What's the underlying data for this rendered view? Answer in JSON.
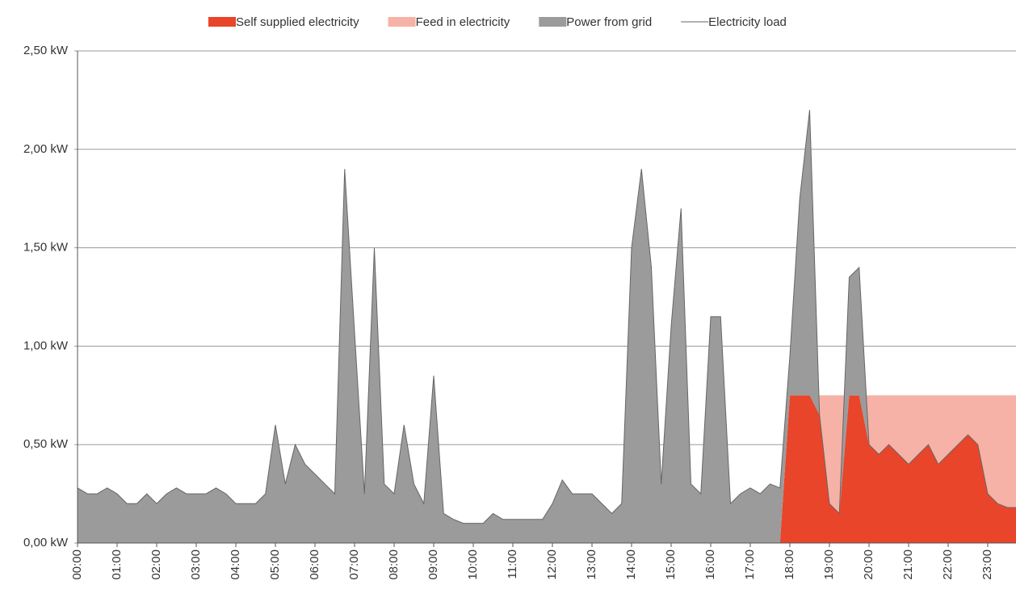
{
  "chart_data": {
    "type": "area",
    "categories": [
      "00:00",
      null,
      null,
      null,
      "01:00",
      null,
      null,
      null,
      "02:00",
      null,
      null,
      null,
      "03:00",
      null,
      null,
      null,
      "04:00",
      null,
      null,
      null,
      "05:00",
      null,
      null,
      null,
      "06:00",
      null,
      null,
      null,
      "07:00",
      null,
      null,
      null,
      "08:00",
      null,
      null,
      null,
      "09:00",
      null,
      null,
      null,
      "10:00",
      null,
      null,
      null,
      "11:00",
      null,
      null,
      null,
      "12:00",
      null,
      null,
      null,
      "13:00",
      null,
      null,
      null,
      "14:00",
      null,
      null,
      null,
      "15:00",
      null,
      null,
      null,
      "16:00",
      null,
      null,
      null,
      "17:00",
      null,
      null,
      null,
      "18:00",
      null,
      null,
      null,
      "19:00",
      null,
      null,
      null,
      "20:00",
      null,
      null,
      null,
      "21:00",
      null,
      null,
      null,
      "22:00",
      null,
      null,
      null,
      "23:00",
      null,
      null,
      null
    ],
    "series": [
      {
        "name": "Self supplied electricity",
        "type": "area",
        "color": "#e8452a",
        "values": [
          0,
          0,
          0,
          0,
          0,
          0,
          0,
          0,
          0,
          0,
          0,
          0,
          0,
          0,
          0,
          0,
          0,
          0,
          0,
          0,
          0,
          0,
          0,
          0,
          0,
          0,
          0,
          0,
          0,
          0,
          0,
          0,
          0,
          0,
          0,
          0,
          0,
          0,
          0,
          0,
          0,
          0,
          0,
          0,
          0,
          0,
          0,
          0,
          0,
          0,
          0,
          0,
          0,
          0,
          0,
          0,
          0,
          0,
          0,
          0,
          0,
          0,
          0,
          0,
          0,
          0,
          0,
          0,
          0,
          0,
          0,
          0,
          0.75,
          0.75,
          0.75,
          0.65,
          0.2,
          0.15,
          0.75,
          0.75,
          0.5,
          0.45,
          0.5,
          0.45,
          0.4,
          0.45,
          0.5,
          0.4,
          0.45,
          0.5,
          0.55,
          0.5,
          0.25,
          0.2,
          0.18,
          0.18
        ]
      },
      {
        "name": "Feed in electricity",
        "type": "area",
        "color": "#f6b2a6",
        "values": [
          0,
          0,
          0,
          0,
          0,
          0,
          0,
          0,
          0,
          0,
          0,
          0,
          0,
          0,
          0,
          0,
          0,
          0,
          0,
          0,
          0,
          0,
          0,
          0,
          0,
          0,
          0,
          0,
          0,
          0,
          0,
          0,
          0,
          0,
          0,
          0,
          0,
          0,
          0,
          0,
          0,
          0,
          0,
          0,
          0,
          0,
          0,
          0,
          0,
          0,
          0,
          0,
          0,
          0,
          0,
          0,
          0,
          0,
          0,
          0,
          0,
          0,
          0,
          0,
          0,
          0,
          0,
          0,
          0,
          0,
          0,
          0,
          0,
          0,
          0,
          0.1,
          0.55,
          0.6,
          0,
          0,
          0.25,
          0.3,
          0.25,
          0.3,
          0.35,
          0.3,
          0.25,
          0.35,
          0.3,
          0.25,
          0.2,
          0.25,
          0.5,
          0.55,
          0.57,
          0.57
        ]
      },
      {
        "name": "Power from grid",
        "type": "area",
        "color": "#9b9b9b",
        "values": [
          0.28,
          0.25,
          0.25,
          0.28,
          0.25,
          0.2,
          0.2,
          0.25,
          0.2,
          0.25,
          0.28,
          0.25,
          0.25,
          0.25,
          0.28,
          0.25,
          0.2,
          0.2,
          0.2,
          0.25,
          0.6,
          0.3,
          0.5,
          0.4,
          0.35,
          0.3,
          0.25,
          1.9,
          1.07,
          0.25,
          1.5,
          0.3,
          0.25,
          0.6,
          0.3,
          0.2,
          0.85,
          0.15,
          0.12,
          0.1,
          0.1,
          0.1,
          0.15,
          0.12,
          0.12,
          0.12,
          0.12,
          0.12,
          0.2,
          0.32,
          0.25,
          0.25,
          0.25,
          0.2,
          0.15,
          0.2,
          1.5,
          1.9,
          1.4,
          0.3,
          1.1,
          1.7,
          0.3,
          0.25,
          1.15,
          1.15,
          0.2,
          0.25,
          0.28,
          0.25,
          0.3,
          0.28,
          0.2,
          1,
          1.45,
          0,
          0,
          0,
          0.6,
          0.65,
          0,
          0,
          0,
          0,
          0,
          0,
          0,
          0,
          0,
          0,
          0,
          0,
          0,
          0,
          0,
          0
        ]
      },
      {
        "name": "Electricity load",
        "type": "line",
        "color": "#666666",
        "values": [
          0.28,
          0.25,
          0.25,
          0.28,
          0.25,
          0.2,
          0.2,
          0.25,
          0.2,
          0.25,
          0.28,
          0.25,
          0.25,
          0.25,
          0.28,
          0.25,
          0.2,
          0.2,
          0.2,
          0.25,
          0.6,
          0.3,
          0.5,
          0.4,
          0.35,
          0.3,
          0.25,
          1.9,
          1.07,
          0.25,
          1.5,
          0.3,
          0.25,
          0.6,
          0.3,
          0.2,
          0.85,
          0.15,
          0.12,
          0.1,
          0.1,
          0.1,
          0.15,
          0.12,
          0.12,
          0.12,
          0.12,
          0.12,
          0.2,
          0.32,
          0.25,
          0.25,
          0.25,
          0.2,
          0.15,
          0.2,
          1.5,
          1.9,
          1.4,
          0.3,
          1.1,
          1.7,
          0.3,
          0.25,
          1.15,
          1.15,
          0.2,
          0.25,
          0.28,
          0.25,
          0.3,
          0.28,
          0.95,
          1.75,
          2.2,
          0.65,
          0.2,
          0.15,
          1.35,
          1.4,
          0.5,
          0.45,
          0.5,
          0.45,
          0.4,
          0.45,
          0.5,
          0.4,
          0.45,
          0.5,
          0.55,
          0.5,
          0.25,
          0.2,
          0.18,
          0.18
        ]
      }
    ],
    "ylim": [
      0,
      2.5
    ],
    "yticks": [
      {
        "value": 0,
        "label": "0,00 kW"
      },
      {
        "value": 0.5,
        "label": "0,50 kW"
      },
      {
        "value": 1,
        "label": "1,00 kW"
      },
      {
        "value": 1.5,
        "label": "1,50 kW"
      },
      {
        "value": 2,
        "label": "2,00 kW"
      },
      {
        "value": 2.5,
        "label": "2,50 kW"
      }
    ],
    "grid": true,
    "legend": "top"
  }
}
